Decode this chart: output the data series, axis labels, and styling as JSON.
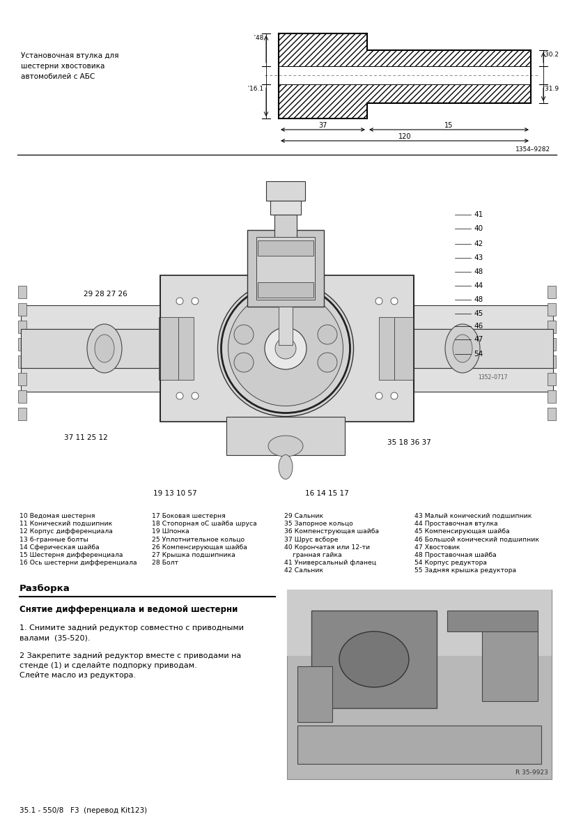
{
  "bg_color": "#ffffff",
  "page_width": 8.24,
  "page_height": 11.88,
  "label_text": "Установочная втулка для\nшестерни хвостовика\nавтомобилей с АБС",
  "dim_48": "҆48",
  "dim_161": "҆16.1",
  "dim_302": "҆30.2",
  "dim_319": "҆31.9",
  "dim_37": "37",
  "dim_15": "15",
  "dim_120": "120",
  "drawing_ref": "1354–9282",
  "diagram_ref": "1352–0717",
  "right_labels": [
    "41",
    "40",
    "42",
    "43",
    "48",
    "44",
    "48",
    "45",
    "46",
    "47",
    "54"
  ],
  "left_upper_label": "29 28 27 26",
  "left_lower_label": "37 11 25 12",
  "right_lower_label": "35 18 36 37",
  "bottom_left_label": "19 13 10 57",
  "bottom_right_label": "16 14 15 17",
  "legend_col1": [
    "10 Ведомая шестерня",
    "11 Конический подшипник",
    "12 Корпус дифференциала",
    "13 6-гранные болты",
    "14 Сферическая шайба",
    "15 Шестерня дифференциала",
    "16 Ось шестерни дифференциала"
  ],
  "legend_col2": [
    "17 Боковая шестерня",
    "18 Стопорная оС шайба шруса",
    "19 Шпонка",
    "25 Уплотнительное кольцо",
    "26 Компенсирующая шайба",
    "27 Крышка подшипника",
    "28 Болт"
  ],
  "legend_col3": [
    "29 Сальник",
    "35 Запорное кольцо",
    "36 Компенструющая шайба",
    "37 Шрус всборе",
    "40 Корончатая или 12-ти",
    "    гранная гайка",
    "41 Универсальный фланец",
    "42 Сальник"
  ],
  "legend_col4": [
    "43 Малый конический подшипник",
    "44 Проставочная втулка",
    "45 Компенсирующая шайба",
    "46 Большой конический подшипник",
    "47 Хвостовик",
    "48 Проставочная шайба",
    "54 Корпус редуктора",
    "55 Задняя крышка редуктора"
  ],
  "section_title": "Разборка",
  "subsection_title": "Снятие дифференциала и ведомой шестерни",
  "step1": "1. Снимите задний редуктор совместно с приводными\nвалами  (35-520).",
  "step2": "2 Закрепите задний редуктор вместе с приводами на\nстенде (1) и сделайте подпорку приводам.\nСлейте масло из редуктора.",
  "photo_ref": "R 35-9923",
  "footer": "35.1 - 550/8   F3  (перевод Kit123)"
}
